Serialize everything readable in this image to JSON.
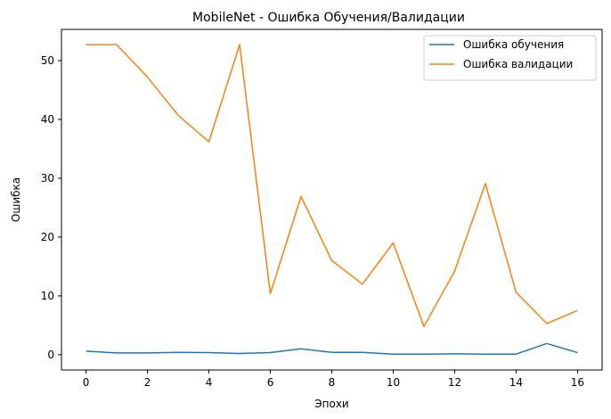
{
  "chart_data": {
    "type": "line",
    "title": "MobileNet - Ошибка Обучения/Валидации",
    "xlabel": "Эпохи",
    "ylabel": "Ошибка",
    "x": [
      0,
      1,
      2,
      3,
      4,
      5,
      6,
      7,
      8,
      9,
      10,
      11,
      12,
      13,
      14,
      15,
      16
    ],
    "xlim": [
      -0.8,
      16.8
    ],
    "ylim": [
      -2.6,
      55.3
    ],
    "xticks": [
      0,
      2,
      4,
      6,
      8,
      10,
      12,
      14,
      16
    ],
    "yticks": [
      0,
      10,
      20,
      30,
      40,
      50
    ],
    "grid": false,
    "legend_position": "top-right",
    "series": [
      {
        "name": "Ошибка обучения",
        "color": "#1f77b4",
        "values": [
          0.6,
          0.3,
          0.3,
          0.4,
          0.35,
          0.2,
          0.35,
          1.0,
          0.4,
          0.4,
          0.1,
          0.1,
          0.15,
          0.1,
          0.1,
          1.9,
          0.35
        ]
      },
      {
        "name": "Ошибка валидации",
        "color": "#ff7f0e",
        "values": [
          52.7,
          52.7,
          47.2,
          40.7,
          36.2,
          52.7,
          10.4,
          26.9,
          16.0,
          12.0,
          19.0,
          4.8,
          14.2,
          29.1,
          10.6,
          5.3,
          7.5
        ]
      }
    ]
  }
}
